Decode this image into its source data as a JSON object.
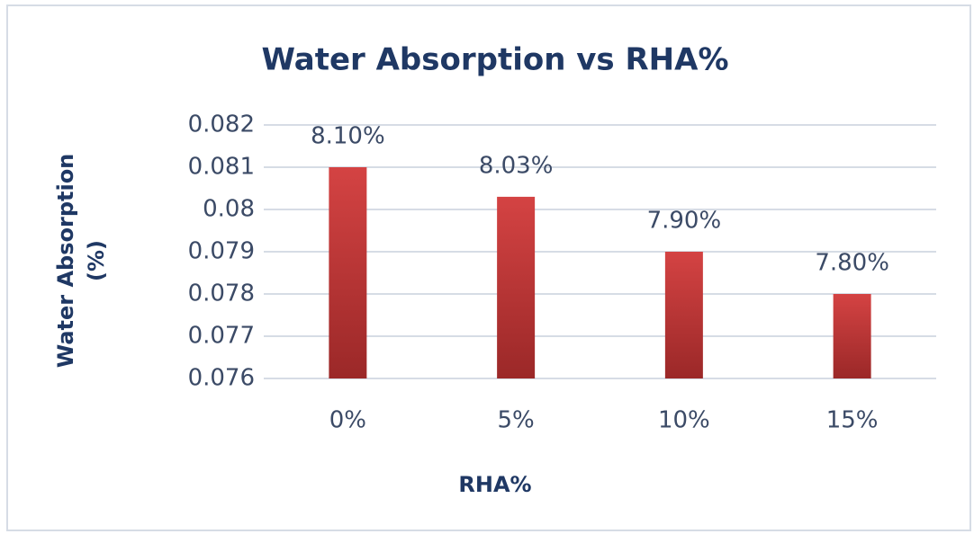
{
  "chart_data": {
    "type": "bar",
    "title": "Water Absorption vs RHA%",
    "x_label": "RHA%",
    "y_label": "Water Absorption (%)",
    "categories": [
      "0%",
      "5%",
      "10%",
      "15%"
    ],
    "values": [
      0.081,
      0.0803,
      0.079,
      0.078
    ],
    "value_labels": [
      "8.10%",
      "8.03%",
      "7.90%",
      "7.80%"
    ],
    "color": "#c93a3a",
    "ylim": [
      0.076,
      0.082
    ],
    "yticks": [
      0.076,
      0.077,
      0.078,
      0.079,
      0.08,
      0.081,
      0.082
    ],
    "grid": true
  }
}
